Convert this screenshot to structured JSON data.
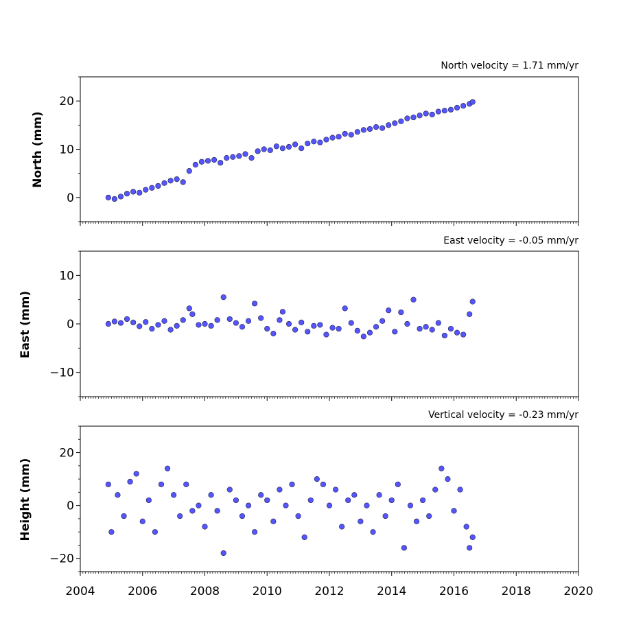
{
  "chart_data": [
    {
      "type": "scatter",
      "title": "North velocity = 1.71 mm/yr",
      "ylabel": "North (mm)",
      "xlim": [
        2004,
        2020
      ],
      "ylim": [
        -5,
        25
      ],
      "yticks": [
        0,
        10,
        20
      ],
      "ytick_labels": [
        "0",
        "10",
        "20"
      ],
      "grid": false,
      "marker_color": "#5555ff",
      "marker_edge_color": "#222244",
      "series": [
        {
          "x": [
            2004.9,
            2005.1,
            2005.3,
            2005.5,
            2005.7,
            2005.9,
            2006.1,
            2006.3,
            2006.5,
            2006.7,
            2006.9,
            2007.1,
            2007.3,
            2007.5,
            2007.7,
            2007.9,
            2008.1,
            2008.3,
            2008.5,
            2008.7,
            2008.9,
            2009.1,
            2009.3,
            2009.5,
            2009.7,
            2009.9,
            2010.1,
            2010.3,
            2010.5,
            2010.7,
            2010.9,
            2011.1,
            2011.3,
            2011.5,
            2011.7,
            2011.9,
            2012.1,
            2012.3,
            2012.5,
            2012.7,
            2012.9,
            2013.1,
            2013.3,
            2013.5,
            2013.7,
            2013.9,
            2014.1,
            2014.3,
            2014.5,
            2014.7,
            2014.9,
            2015.1,
            2015.3,
            2015.5,
            2015.7,
            2015.9,
            2016.1,
            2016.3,
            2016.5,
            2016.6
          ],
          "y": [
            0.0,
            -0.3,
            0.2,
            0.8,
            1.2,
            1.0,
            1.6,
            2.0,
            2.4,
            3.0,
            3.5,
            3.8,
            3.2,
            5.5,
            6.8,
            7.4,
            7.6,
            7.8,
            7.2,
            8.2,
            8.4,
            8.6,
            9.0,
            8.2,
            9.6,
            10.0,
            9.8,
            10.6,
            10.2,
            10.5,
            11.0,
            10.2,
            11.2,
            11.6,
            11.4,
            12.0,
            12.4,
            12.6,
            13.2,
            13.0,
            13.6,
            14.0,
            14.2,
            14.6,
            14.4,
            15.0,
            15.4,
            15.8,
            16.4,
            16.6,
            17.0,
            17.4,
            17.2,
            17.8,
            18.0,
            18.2,
            18.6,
            19.0,
            19.4,
            19.8
          ]
        }
      ]
    },
    {
      "type": "scatter",
      "title": "East velocity = -0.05 mm/yr",
      "ylabel": "East (mm)",
      "xlim": [
        2004,
        2020
      ],
      "ylim": [
        -15,
        15
      ],
      "yticks": [
        -10,
        0,
        10
      ],
      "ytick_labels": [
        "−10",
        "0",
        "10"
      ],
      "grid": false,
      "marker_color": "#5555ff",
      "marker_edge_color": "#222244",
      "series": [
        {
          "x": [
            2004.9,
            2005.1,
            2005.3,
            2005.5,
            2005.7,
            2005.9,
            2006.1,
            2006.3,
            2006.5,
            2006.7,
            2006.9,
            2007.1,
            2007.3,
            2007.5,
            2007.6,
            2007.8,
            2008.0,
            2008.2,
            2008.4,
            2008.6,
            2008.8,
            2009.0,
            2009.2,
            2009.4,
            2009.6,
            2009.8,
            2010.0,
            2010.2,
            2010.4,
            2010.5,
            2010.7,
            2010.9,
            2011.1,
            2011.3,
            2011.5,
            2011.7,
            2011.9,
            2012.1,
            2012.3,
            2012.5,
            2012.7,
            2012.9,
            2013.1,
            2013.3,
            2013.5,
            2013.7,
            2013.9,
            2014.1,
            2014.3,
            2014.5,
            2014.7,
            2014.9,
            2015.1,
            2015.3,
            2015.5,
            2015.7,
            2015.9,
            2016.1,
            2016.3,
            2016.5,
            2016.6
          ],
          "y": [
            0.0,
            0.5,
            0.2,
            1.0,
            0.3,
            -0.5,
            0.4,
            -1.0,
            -0.2,
            0.6,
            -1.2,
            -0.4,
            0.8,
            3.2,
            2.0,
            -0.2,
            0.0,
            -0.4,
            0.8,
            5.5,
            1.0,
            0.2,
            -0.6,
            0.6,
            4.2,
            1.2,
            -1.0,
            -2.0,
            0.8,
            2.5,
            0.0,
            -1.2,
            0.3,
            -1.6,
            -0.4,
            -0.2,
            -2.2,
            -0.8,
            -1.0,
            3.2,
            0.2,
            -1.4,
            -2.6,
            -1.8,
            -0.6,
            0.6,
            2.8,
            -1.6,
            2.4,
            0.0,
            5.0,
            -1.0,
            -0.6,
            -1.2,
            0.2,
            -2.4,
            -1.0,
            -1.8,
            -2.2,
            2.0,
            4.6
          ]
        }
      ]
    },
    {
      "type": "scatter",
      "title": "Vertical velocity = -0.23 mm/yr",
      "ylabel": "Height (mm)",
      "xlim": [
        2004,
        2020
      ],
      "ylim": [
        -25,
        30
      ],
      "yticks": [
        -20,
        0,
        20
      ],
      "ytick_labels": [
        "−20",
        "0",
        "20"
      ],
      "xticks": [
        2004,
        2006,
        2008,
        2010,
        2012,
        2014,
        2016,
        2018,
        2020
      ],
      "xtick_labels": [
        "2004",
        "2006",
        "2008",
        "2010",
        "2012",
        "2014",
        "2016",
        "2018",
        "2020"
      ],
      "grid": false,
      "marker_color": "#5555ff",
      "marker_edge_color": "#222244",
      "series": [
        {
          "x": [
            2004.9,
            2005.0,
            2005.2,
            2005.4,
            2005.6,
            2005.8,
            2006.0,
            2006.2,
            2006.4,
            2006.6,
            2006.8,
            2007.0,
            2007.2,
            2007.4,
            2007.6,
            2007.8,
            2008.0,
            2008.2,
            2008.4,
            2008.6,
            2008.8,
            2009.0,
            2009.2,
            2009.4,
            2009.6,
            2009.8,
            2010.0,
            2010.2,
            2010.4,
            2010.6,
            2010.8,
            2011.0,
            2011.2,
            2011.4,
            2011.6,
            2011.8,
            2012.0,
            2012.2,
            2012.4,
            2012.6,
            2012.8,
            2013.0,
            2013.2,
            2013.4,
            2013.6,
            2013.8,
            2014.0,
            2014.2,
            2014.4,
            2014.6,
            2014.8,
            2015.0,
            2015.2,
            2015.4,
            2015.6,
            2015.8,
            2016.0,
            2016.2,
            2016.4,
            2016.5,
            2016.6
          ],
          "y": [
            8.0,
            -10.0,
            4.0,
            -4.0,
            9.0,
            12.0,
            -6.0,
            2.0,
            -10.0,
            8.0,
            14.0,
            4.0,
            -4.0,
            8.0,
            -2.0,
            0.0,
            -8.0,
            4.0,
            -2.0,
            -18.0,
            6.0,
            2.0,
            -4.0,
            0.0,
            -10.0,
            4.0,
            2.0,
            -6.0,
            6.0,
            0.0,
            8.0,
            -4.0,
            -12.0,
            2.0,
            10.0,
            8.0,
            0.0,
            6.0,
            -8.0,
            2.0,
            4.0,
            -6.0,
            0.0,
            -10.0,
            4.0,
            -4.0,
            2.0,
            8.0,
            -16.0,
            0.0,
            -6.0,
            2.0,
            -4.0,
            6.0,
            14.0,
            10.0,
            -2.0,
            6.0,
            -8.0,
            -16.0,
            -12.0
          ]
        }
      ]
    }
  ]
}
